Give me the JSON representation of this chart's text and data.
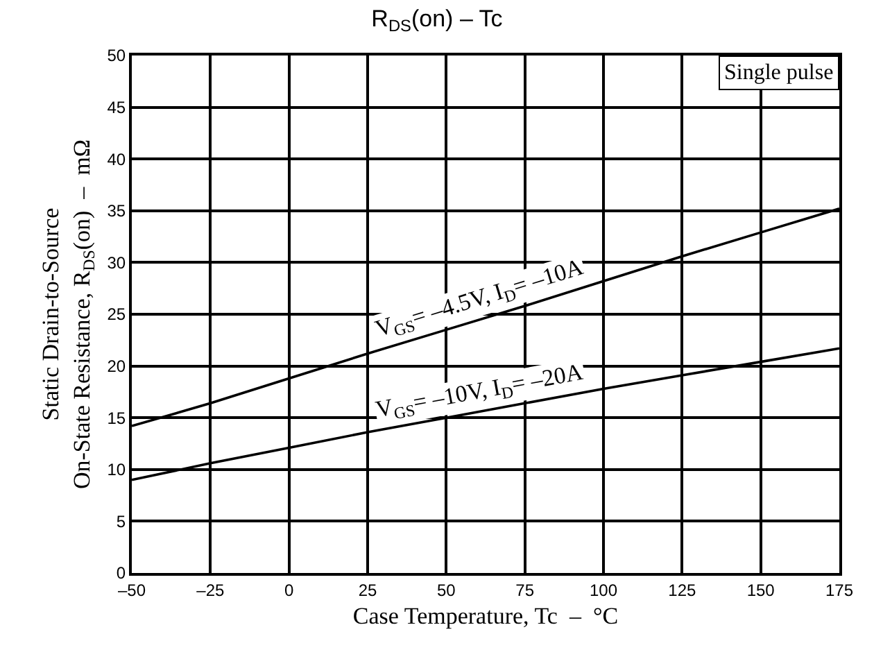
{
  "chart_data": {
    "type": "line",
    "title": "R$_{DS}$(on) – Tc",
    "xlabel": "Case Temperature, Tc  –  °C",
    "ylabel": "Static Drain-to-Source\nOn-State Resistance, R$_{DS}$(on)  –  mΩ",
    "x": [
      -50,
      -25,
      0,
      25,
      50,
      75,
      100,
      125,
      150,
      175
    ],
    "series": [
      {
        "name": "V$_{GS}$= –4.5V, I$_{D}$= –10A",
        "color": "#000000",
        "values": [
          14.2,
          16.4,
          18.8,
          21.2,
          23.5,
          25.8,
          28.2,
          30.6,
          32.9,
          35.2
        ]
      },
      {
        "name": "V$_{GS}$= –10V, I$_{D}$= –20A",
        "color": "#000000",
        "values": [
          9,
          10.6,
          12.1,
          13.6,
          15.0,
          16.4,
          17.8,
          19.1,
          20.4,
          21.7
        ]
      }
    ],
    "xlim": [
      -50,
      175
    ],
    "xticks": [
      {
        "value": -50,
        "label": "–50"
      },
      {
        "value": -25,
        "label": "–25"
      },
      0,
      25,
      50,
      75,
      100,
      125,
      150,
      175
    ],
    "ylim": [
      0,
      50
    ],
    "yticks": [
      0,
      5,
      10,
      15,
      20,
      25,
      30,
      35,
      40,
      45,
      50
    ],
    "annotations": [
      "Single pulse"
    ],
    "grid": true,
    "legend": false,
    "marker": "none",
    "line_style": "solid"
  }
}
